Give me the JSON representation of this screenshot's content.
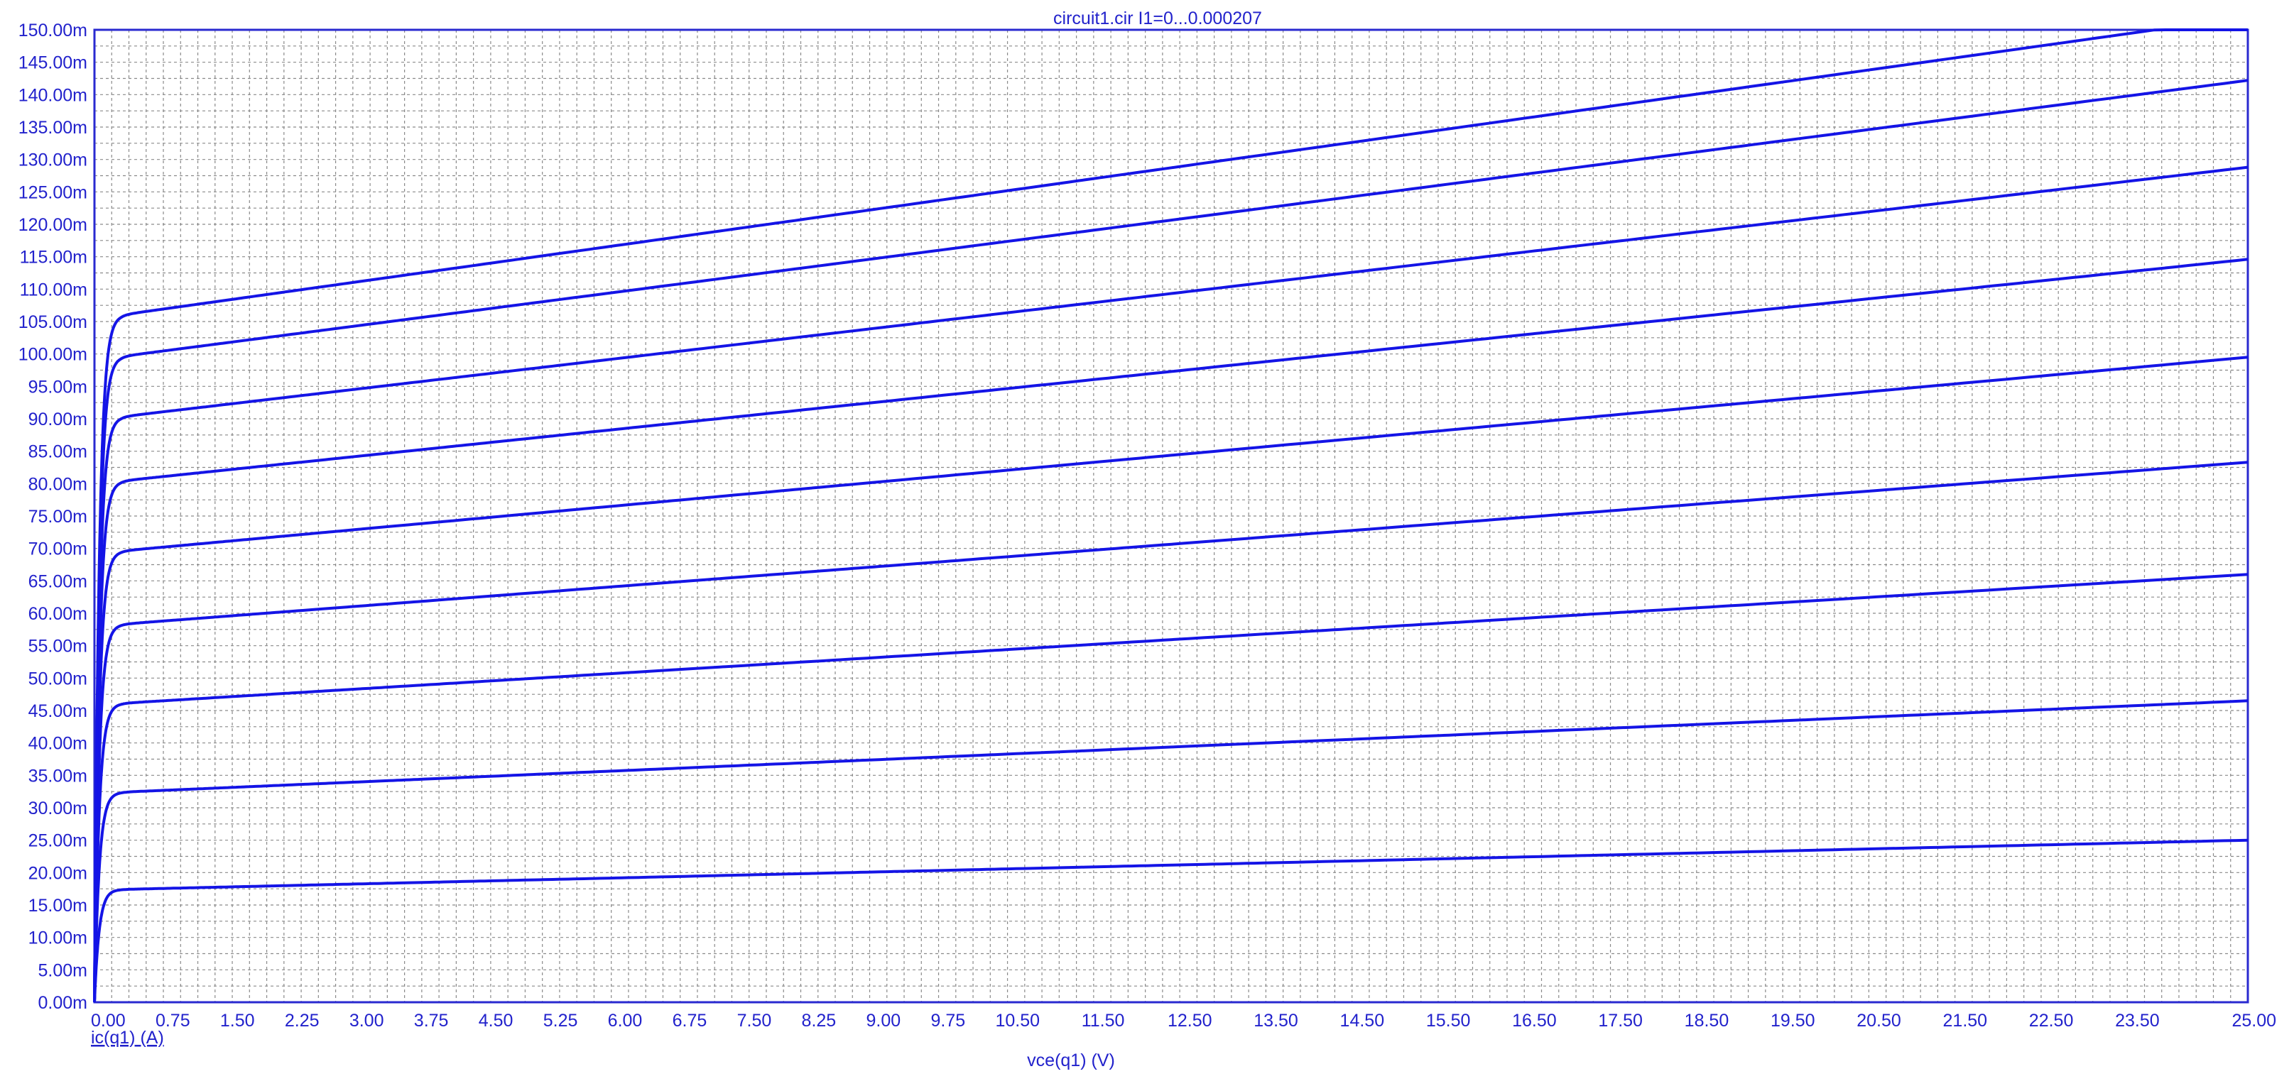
{
  "chart_data": {
    "type": "line",
    "title": "circuit1.cir I1=0...0.000207",
    "xlabel": "vce(q1) (V)",
    "ylabel": "ic(q1) (A)",
    "xlim": [
      0,
      25
    ],
    "ylim": [
      0,
      0.15
    ],
    "grid": true,
    "x_ticks": [
      "0.00",
      "0.75",
      "1.50",
      "2.25",
      "3.00",
      "3.75",
      "4.50",
      "5.25",
      "6.00",
      "6.75",
      "7.50",
      "8.25",
      "9.00",
      "9.75",
      "10.50",
      "11.50",
      "12.50",
      "13.50",
      "14.50",
      "15.50",
      "16.50",
      "17.50",
      "18.50",
      "19.50",
      "20.50",
      "21.50",
      "22.50",
      "23.50",
      "25.00"
    ],
    "x_tick_values": [
      0,
      0.75,
      1.5,
      2.25,
      3,
      3.75,
      4.5,
      5.25,
      6,
      6.75,
      7.5,
      8.25,
      9,
      9.75,
      10.5,
      11.5,
      12.5,
      13.5,
      14.5,
      15.5,
      16.5,
      17.5,
      18.5,
      19.5,
      20.5,
      21.5,
      22.5,
      23.5,
      25
    ],
    "y_ticks": [
      "0.00m",
      "5.00m",
      "10.00m",
      "15.00m",
      "20.00m",
      "25.00m",
      "30.00m",
      "35.00m",
      "40.00m",
      "45.00m",
      "50.00m",
      "55.00m",
      "60.00m",
      "65.00m",
      "70.00m",
      "75.00m",
      "80.00m",
      "85.00m",
      "90.00m",
      "95.00m",
      "100.00m",
      "105.00m",
      "110.00m",
      "115.00m",
      "120.00m",
      "125.00m",
      "130.00m",
      "135.00m",
      "140.00m",
      "145.00m",
      "150.00m"
    ],
    "series": [
      {
        "knee_x": 0.3,
        "y_sat": 0.0174,
        "y_end": 0.025
      },
      {
        "knee_x": 0.3,
        "y_sat": 0.0324,
        "y_end": 0.0465
      },
      {
        "knee_x": 0.3,
        "y_sat": 0.0461,
        "y_end": 0.066
      },
      {
        "knee_x": 0.3,
        "y_sat": 0.0583,
        "y_end": 0.0833
      },
      {
        "knee_x": 0.3,
        "y_sat": 0.0696,
        "y_end": 0.0995
      },
      {
        "knee_x": 0.3,
        "y_sat": 0.0804,
        "y_end": 0.1146
      },
      {
        "knee_x": 0.3,
        "y_sat": 0.0903,
        "y_end": 0.1288
      },
      {
        "knee_x": 0.3,
        "y_sat": 0.0996,
        "y_end": 0.1422
      },
      {
        "knee_x": 0.3,
        "y_sat": 0.106,
        "y_end": 0.152
      }
    ],
    "colors": {
      "trace": "#1414e6",
      "text": "#2222cc",
      "grid": "#8a8a8a",
      "axis": "#2a2ad0"
    }
  }
}
